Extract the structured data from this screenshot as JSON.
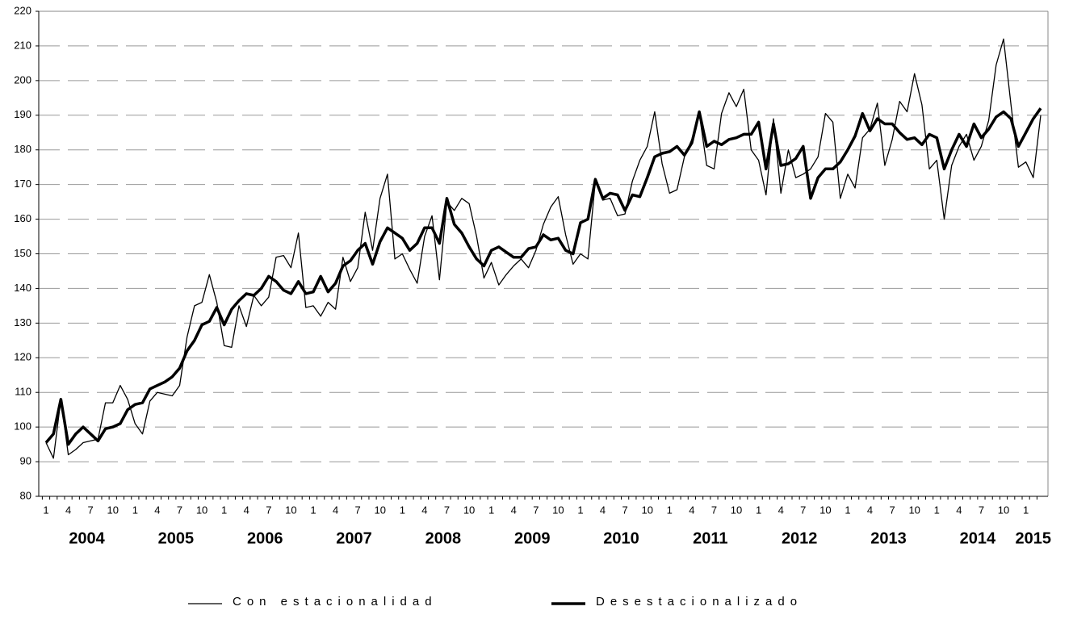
{
  "chart_data": {
    "type": "line",
    "categories": [
      "1",
      null,
      null,
      "4",
      null,
      null,
      "7",
      null,
      null,
      "10",
      null,
      null,
      "1",
      null,
      null,
      "4",
      null,
      null,
      "7",
      null,
      null,
      "10",
      null,
      null,
      "1",
      null,
      null,
      "4",
      null,
      null,
      "7",
      null,
      null,
      "10",
      null,
      null,
      "1",
      null,
      null,
      "4",
      null,
      null,
      "7",
      null,
      null,
      "10",
      null,
      null,
      "1",
      null,
      null,
      "4",
      null,
      null,
      "7",
      null,
      null,
      "10",
      null,
      null,
      "1",
      null,
      null,
      "4",
      null,
      null,
      "7",
      null,
      null,
      "10",
      null,
      null,
      "1",
      null,
      null,
      "4",
      null,
      null,
      "7",
      null,
      null,
      "10",
      null,
      null,
      "1",
      null,
      null,
      "4",
      null,
      null,
      "7",
      null,
      null,
      "10",
      null,
      null,
      "1",
      null,
      null,
      "4",
      null,
      null,
      "7",
      null,
      null,
      "10",
      null,
      null,
      "1",
      null,
      null,
      "4",
      null,
      null,
      "7",
      null,
      null,
      "10",
      null,
      null,
      "1",
      null,
      null,
      "4",
      null,
      null,
      "7",
      null,
      null,
      "10",
      null,
      null,
      "1",
      null,
      null
    ],
    "year_labels": [
      "2004",
      "2005",
      "2006",
      "2007",
      "2008",
      "2009",
      "2010",
      "2011",
      "2012",
      "2013",
      "2014",
      "2015"
    ],
    "series": [
      {
        "name": "Con estacionalidad",
        "color": "#000000",
        "width": 1.3,
        "values": [
          95.5,
          91,
          108,
          92,
          93.5,
          95.5,
          96,
          96.5,
          107,
          107,
          112,
          108,
          101,
          98,
          107.5,
          110,
          109.5,
          109,
          112,
          126,
          135,
          136,
          144,
          136,
          123.5,
          123,
          135,
          129,
          138,
          135,
          137.5,
          149,
          149.5,
          146,
          156,
          134.5,
          135,
          132,
          136,
          134,
          149,
          142,
          146,
          162,
          151,
          166,
          173,
          148.5,
          150,
          145.5,
          141.5,
          155,
          161,
          142.5,
          165,
          162.5,
          166,
          164.5,
          155,
          143,
          147.5,
          141,
          144,
          146.5,
          148.5,
          146,
          151,
          158.5,
          163.5,
          166.5,
          155.5,
          147,
          150,
          148.5,
          171,
          165.5,
          166,
          161,
          161.5,
          171,
          177,
          181,
          191,
          176,
          167.5,
          168.5,
          178,
          183,
          190.5,
          175.5,
          174.5,
          190.5,
          196.5,
          192.5,
          197.5,
          180,
          177,
          167,
          189,
          167.5,
          180,
          172,
          173,
          174.5,
          178,
          190.5,
          188,
          166,
          173,
          169,
          183.5,
          186,
          193.5,
          175.5,
          183,
          194,
          191,
          202,
          193,
          174.5,
          177,
          160,
          175.5,
          181,
          184.5,
          177,
          181,
          188.5,
          204.5,
          212,
          193,
          175,
          176.5,
          172,
          190
        ]
      },
      {
        "name": "Desestacionalizado",
        "color": "#000000",
        "width": 3.5,
        "values": [
          95.5,
          98,
          108,
          95,
          98,
          100,
          98,
          96,
          99.5,
          100,
          101,
          105,
          106.5,
          107,
          111,
          112,
          113,
          114.5,
          117,
          122,
          125,
          129.5,
          130.5,
          134.5,
          129.5,
          134,
          136.5,
          138.5,
          138,
          140,
          143.5,
          142,
          139.5,
          138.5,
          142,
          138.5,
          139,
          143.5,
          139,
          141.5,
          146.5,
          148,
          151,
          153,
          147,
          153.5,
          157.5,
          156,
          154.5,
          151,
          153,
          157.5,
          157.5,
          153,
          166,
          158.5,
          156,
          152,
          148.5,
          146.5,
          151,
          152,
          150.5,
          149,
          149,
          151.5,
          152,
          155.5,
          154,
          154.5,
          151,
          150,
          159,
          160,
          171.5,
          166,
          167.5,
          167,
          162.5,
          167,
          166.5,
          172,
          178,
          179,
          179.5,
          181,
          178.5,
          182,
          191,
          181,
          182.5,
          181.5,
          183,
          183.5,
          184.5,
          184.5,
          188,
          174.5,
          187.5,
          175.5,
          176,
          177.5,
          181,
          166,
          172,
          174.5,
          174.5,
          176.5,
          180,
          184,
          190.5,
          185.5,
          189,
          187.5,
          187.5,
          185,
          183,
          183.5,
          181.5,
          184.5,
          183.5,
          174.5,
          180,
          184.5,
          181,
          187.5,
          183.5,
          186,
          189.5,
          191,
          189,
          181,
          185,
          189,
          192
        ]
      }
    ],
    "ylim": [
      80,
      220
    ],
    "yticks": [
      80,
      90,
      100,
      110,
      120,
      130,
      140,
      150,
      160,
      170,
      180,
      190,
      200,
      210,
      220
    ],
    "grid": true
  }
}
